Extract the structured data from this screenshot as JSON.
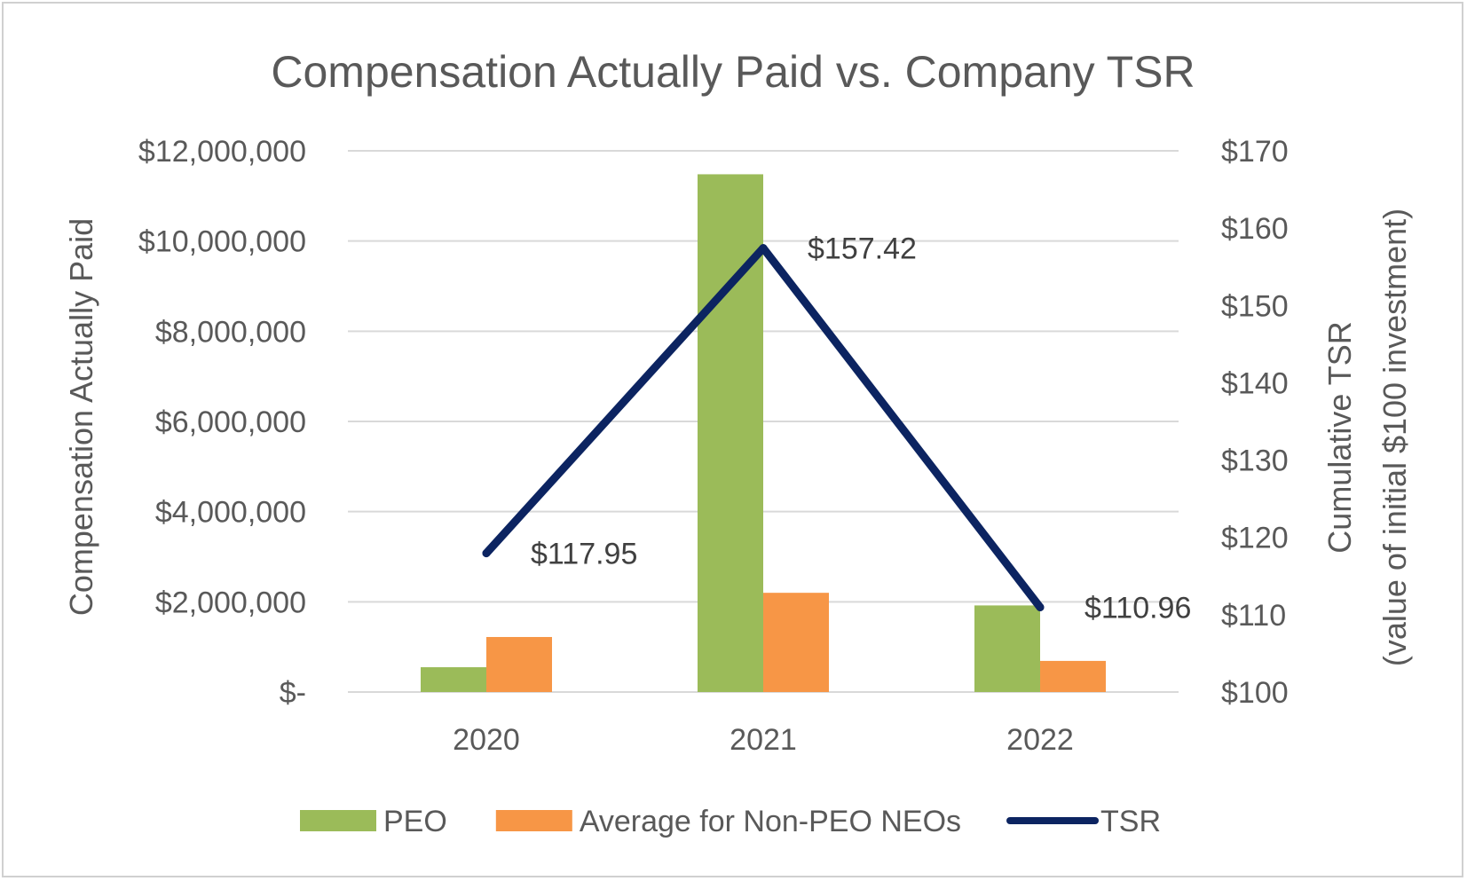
{
  "chart_data": {
    "type": "bar",
    "title": "Compensation Actually Paid vs. Company TSR",
    "categories": [
      "2020",
      "2021",
      "2022"
    ],
    "y_left": {
      "label": "Compensation Actually Paid",
      "range": [
        0,
        12000000
      ],
      "ticks": [
        0,
        2000000,
        4000000,
        6000000,
        8000000,
        10000000,
        12000000
      ],
      "tick_labels": [
        "$-",
        "$2,000,000",
        "$4,000,000",
        "$6,000,000",
        "$8,000,000",
        "$10,000,000",
        "$12,000,000"
      ]
    },
    "y_right": {
      "label_line1": "Cumulative TSR",
      "label_line2": "(value of initial $100 investment)",
      "range": [
        100,
        170
      ],
      "ticks": [
        100,
        110,
        120,
        130,
        140,
        150,
        160,
        170
      ],
      "tick_labels": [
        "$100",
        "$110",
        "$120",
        "$130",
        "$140",
        "$150",
        "$160",
        "$170"
      ]
    },
    "series": [
      {
        "name": "PEO",
        "type": "bar",
        "axis": "left",
        "color": "#9bbb59",
        "values": [
          550000,
          11480000,
          1920000
        ]
      },
      {
        "name": "Average for Non-PEO NEOs",
        "type": "bar",
        "axis": "left",
        "color": "#f79646",
        "values": [
          1220000,
          2200000,
          690000
        ]
      },
      {
        "name": "TSR",
        "type": "line",
        "axis": "right",
        "color": "#0c2461",
        "values": [
          117.95,
          157.42,
          110.96
        ],
        "data_labels": [
          "$117.95",
          "$157.42",
          "$110.96"
        ]
      }
    ],
    "grid": true,
    "legend_position": "bottom"
  }
}
